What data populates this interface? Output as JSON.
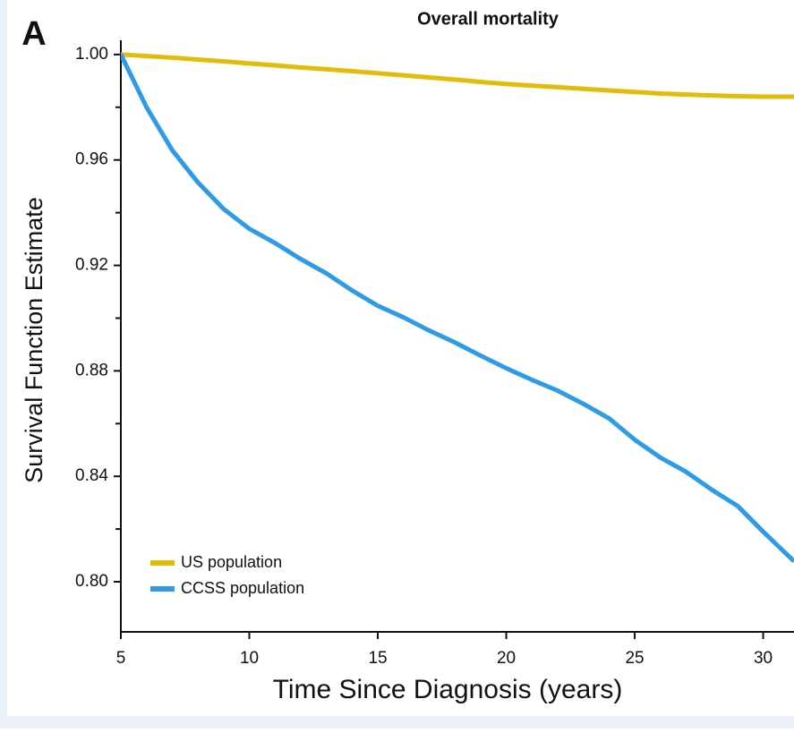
{
  "chart_data": {
    "type": "line",
    "panel_label": "A",
    "title": "Overall mortality",
    "x_label": "Time Since Diagnosis (years)",
    "y_label": "Survival Function Estimate",
    "x": [
      5,
      6,
      7,
      8,
      9,
      10,
      11,
      12,
      13,
      14,
      15,
      16,
      17,
      18,
      19,
      20,
      21,
      22,
      23,
      24,
      25,
      26,
      27,
      28,
      29,
      30,
      31.2
    ],
    "series": [
      {
        "name": "US population",
        "color": "#e3bb0a",
        "values": [
          1.0,
          0.9994,
          0.9988,
          0.9981,
          0.9974,
          0.9966,
          0.9959,
          0.9951,
          0.9944,
          0.9937,
          0.9929,
          0.9921,
          0.9913,
          0.9905,
          0.9896,
          0.9888,
          0.9882,
          0.9876,
          0.987,
          0.9864,
          0.9858,
          0.9852,
          0.9848,
          0.9845,
          0.9842,
          0.984,
          0.984
        ]
      },
      {
        "name": "CCSS population",
        "color": "#2e9be6",
        "values": [
          1.0,
          0.98,
          0.9637,
          0.9515,
          0.9414,
          0.9339,
          0.9285,
          0.9224,
          0.917,
          0.9105,
          0.9047,
          0.9003,
          0.8953,
          0.8908,
          0.8858,
          0.881,
          0.8766,
          0.8725,
          0.8675,
          0.862,
          0.8539,
          0.8471,
          0.8417,
          0.8349,
          0.8288,
          0.819,
          0.8078
        ]
      }
    ],
    "xlim": [
      5,
      31.2
    ],
    "ylim": [
      0.781,
      1.0054
    ],
    "xticks": [
      5,
      10,
      15,
      20,
      25,
      30
    ],
    "yticks": [
      {
        "value": 1,
        "label": "1.00"
      },
      0.96,
      0.92,
      0.88,
      0.84,
      {
        "value": 0.8,
        "label": "0.80"
      }
    ],
    "yticks_minor": [
      0.98,
      0.94,
      0.9,
      0.86,
      0.82
    ],
    "legend": "lower left"
  }
}
